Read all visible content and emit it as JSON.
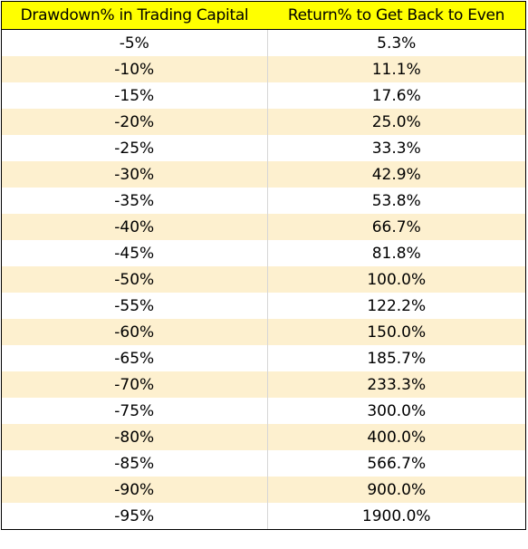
{
  "table": {
    "headers": [
      "Drawdown% in Trading Capital",
      "Return% to Get Back to Even"
    ],
    "rows": [
      [
        "-5%",
        "5.3%"
      ],
      [
        "-10%",
        "11.1%"
      ],
      [
        "-15%",
        "17.6%"
      ],
      [
        "-20%",
        "25.0%"
      ],
      [
        "-25%",
        "33.3%"
      ],
      [
        "-30%",
        "42.9%"
      ],
      [
        "-35%",
        "53.8%"
      ],
      [
        "-40%",
        "66.7%"
      ],
      [
        "-45%",
        "81.8%"
      ],
      [
        "-50%",
        "100.0%"
      ],
      [
        "-55%",
        "122.2%"
      ],
      [
        "-60%",
        "150.0%"
      ],
      [
        "-65%",
        "185.7%"
      ],
      [
        "-70%",
        "233.3%"
      ],
      [
        "-75%",
        "300.0%"
      ],
      [
        "-80%",
        "400.0%"
      ],
      [
        "-85%",
        "566.7%"
      ],
      [
        "-90%",
        "900.0%"
      ],
      [
        "-95%",
        "1900.0%"
      ]
    ]
  },
  "colors": {
    "header_bg": "#ffff00",
    "row_plain_bg": "#ffffff",
    "row_alt_bg": "#fdf0cf"
  }
}
